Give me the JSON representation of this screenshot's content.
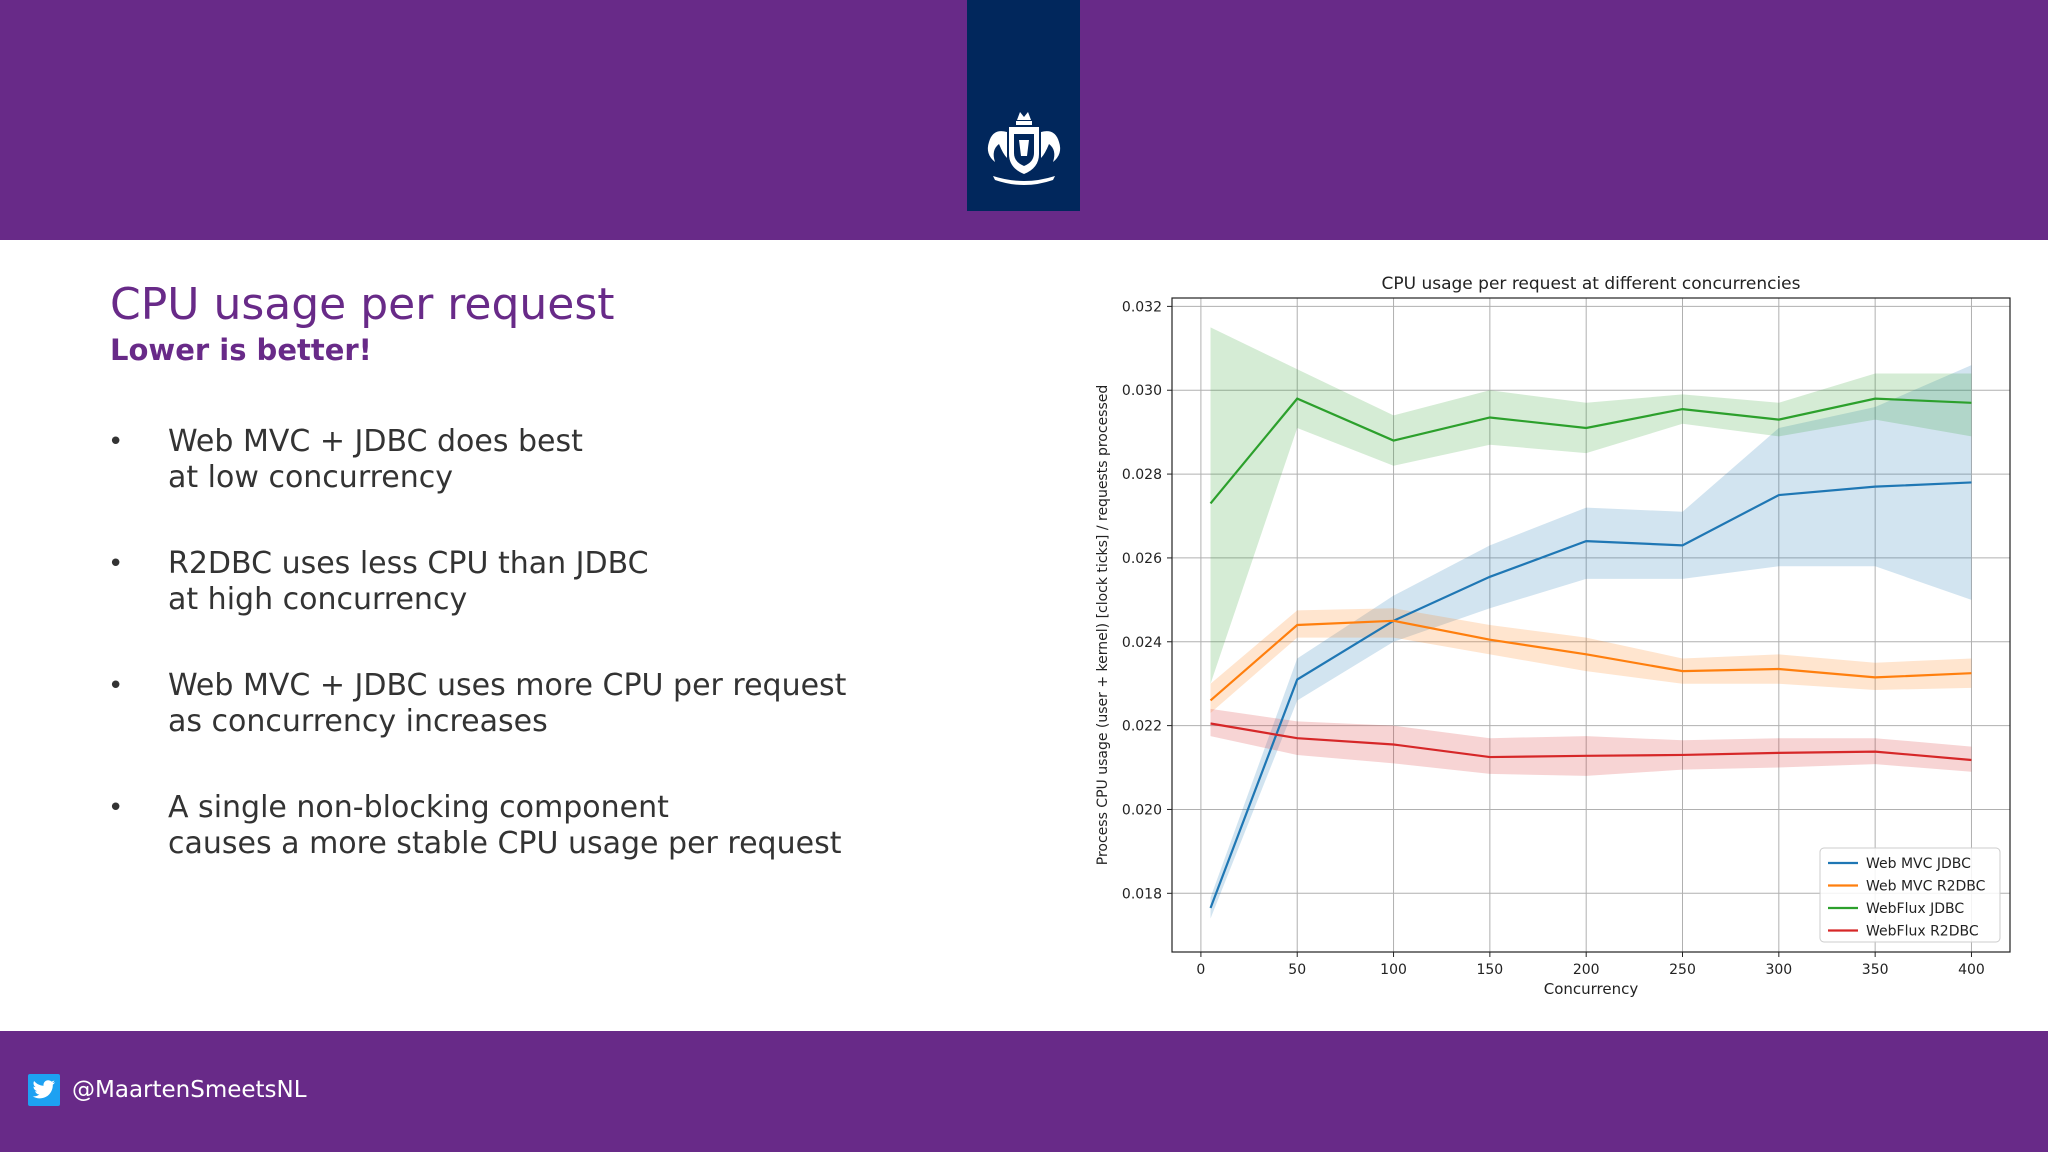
{
  "header": {
    "logo": "coat-of-arms-logo"
  },
  "slide": {
    "title": "CPU usage per request",
    "subtitle": "Lower is better!",
    "bullets": [
      {
        "line1": "Web MVC + JDBC does best",
        "line2": "at low concurrency"
      },
      {
        "line1": "R2DBC uses less CPU than JDBC",
        "line2": "at high concurrency"
      },
      {
        "line1": "Web MVC + JDBC uses more CPU per request",
        "line2": "as concurrency increases"
      },
      {
        "line1": "A single non-blocking component",
        "line2": "causes a more stable CPU usage per request"
      }
    ]
  },
  "footer": {
    "twitter_icon": "twitter-icon",
    "handle": "@MaartenSmeetsNL"
  },
  "chart_data": {
    "type": "line",
    "title": "CPU usage per request at different concurrencies",
    "xlabel": "Concurrency",
    "ylabel": "Process CPU usage (user + kernel) [clock ticks] / requests processed",
    "xlim": [
      -15,
      420
    ],
    "ylim": [
      0.0166,
      0.0322
    ],
    "xticks": [
      0,
      50,
      100,
      150,
      200,
      250,
      300,
      350,
      400
    ],
    "yticks": [
      0.018,
      0.02,
      0.022,
      0.024,
      0.026,
      0.028,
      0.03,
      0.032
    ],
    "ytick_labels": [
      "0.018",
      "0.020",
      "0.022",
      "0.024",
      "0.026",
      "0.028",
      "0.030",
      "0.032"
    ],
    "grid": true,
    "legend_position": "lower-right",
    "x": [
      5,
      50,
      100,
      150,
      200,
      250,
      300,
      350,
      400
    ],
    "series": [
      {
        "name": "Web MVC JDBC",
        "color": "#1f77b4",
        "values": [
          0.01765,
          0.0231,
          0.0245,
          0.02555,
          0.0264,
          0.0263,
          0.0275,
          0.0277,
          0.0278
        ],
        "lower": [
          0.0174,
          0.0226,
          0.024,
          0.0248,
          0.0255,
          0.0255,
          0.0258,
          0.0258,
          0.025
        ],
        "upper": [
          0.0179,
          0.0236,
          0.0251,
          0.0263,
          0.0272,
          0.0271,
          0.0291,
          0.0296,
          0.0306
        ]
      },
      {
        "name": "Web MVC R2DBC",
        "color": "#ff7f0e",
        "values": [
          0.0226,
          0.0244,
          0.0245,
          0.02405,
          0.0237,
          0.0233,
          0.02335,
          0.02315,
          0.02325
        ],
        "lower": [
          0.0223,
          0.0241,
          0.0241,
          0.0237,
          0.0233,
          0.023,
          0.023,
          0.02285,
          0.0229
        ],
        "upper": [
          0.023,
          0.02475,
          0.0248,
          0.0244,
          0.0241,
          0.0236,
          0.0237,
          0.0235,
          0.0236
        ]
      },
      {
        "name": "WebFlux JDBC",
        "color": "#2ca02c",
        "values": [
          0.0273,
          0.0298,
          0.0288,
          0.02935,
          0.0291,
          0.02955,
          0.0293,
          0.0298,
          0.0297
        ],
        "lower": [
          0.023,
          0.0291,
          0.0282,
          0.0287,
          0.0285,
          0.0292,
          0.0289,
          0.0293,
          0.0289
        ],
        "upper": [
          0.0315,
          0.0305,
          0.0294,
          0.03,
          0.0297,
          0.0299,
          0.0297,
          0.0304,
          0.0304
        ]
      },
      {
        "name": "WebFlux R2DBC",
        "color": "#d62728",
        "values": [
          0.02205,
          0.0217,
          0.02155,
          0.02125,
          0.02128,
          0.0213,
          0.02135,
          0.02138,
          0.02118
        ],
        "lower": [
          0.02175,
          0.0213,
          0.0211,
          0.02085,
          0.0208,
          0.02095,
          0.021,
          0.02108,
          0.0209
        ],
        "upper": [
          0.0224,
          0.0221,
          0.022,
          0.0217,
          0.02175,
          0.02165,
          0.0217,
          0.0217,
          0.0215
        ]
      }
    ]
  }
}
